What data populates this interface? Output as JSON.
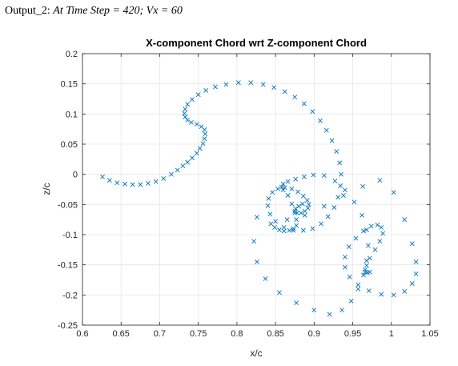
{
  "caption": {
    "prefix": "Output_2: ",
    "text": "At Time Step = 420; Vx = 60"
  },
  "chart_data": {
    "type": "scatter",
    "title": "X-component Chord wrt Z-component Chord",
    "xlabel": "x/c",
    "ylabel": "z/c",
    "xlim": [
      0.6,
      1.05
    ],
    "ylim": [
      -0.25,
      0.2
    ],
    "xticks": [
      0.6,
      0.65,
      0.7,
      0.75,
      0.8,
      0.85,
      0.9,
      0.95,
      1,
      1.05
    ],
    "xtick_labels": [
      "0.6",
      "0.65",
      "0.7",
      "0.75",
      "0.8",
      "0.85",
      "0.9",
      "0.95",
      "1",
      "1.05"
    ],
    "yticks": [
      0.2,
      0.15,
      0.1,
      0.05,
      0,
      -0.05,
      -0.1,
      -0.15,
      -0.2,
      -0.25
    ],
    "ytick_labels": [
      "0.2",
      "0.15",
      "0.1",
      "0.05",
      "0",
      "-0.05",
      "-0.1",
      "-0.15",
      "-0.2",
      "-0.25"
    ],
    "grid": true,
    "marker": "x",
    "marker_color": "#0072BD",
    "series": [
      {
        "values_x": [
          0.626,
          0.635,
          0.645,
          0.655,
          0.665,
          0.675,
          0.685,
          0.695,
          0.705,
          0.715,
          0.723,
          0.73,
          0.736,
          0.742,
          0.748,
          0.752,
          0.756,
          0.758,
          0.759,
          0.758,
          0.754,
          0.748,
          0.741,
          0.736,
          0.733,
          0.732,
          0.733,
          0.736,
          0.742,
          0.75,
          0.76,
          0.772,
          0.786,
          0.802,
          0.818,
          0.834,
          0.848,
          0.862,
          0.875,
          0.887,
          0.898,
          0.908,
          0.916,
          0.923,
          0.929,
          0.933,
          0.935,
          0.934,
          0.931,
          0.926,
          0.918,
          0.909,
          0.898,
          0.886,
          0.873,
          0.861,
          0.85,
          0.843,
          0.84,
          0.841,
          0.846,
          0.853,
          0.862,
          0.871,
          0.879,
          0.886,
          0.891,
          0.893,
          0.892,
          0.888,
          0.883,
          0.878,
          0.875,
          0.876,
          0.88,
          0.885,
          0.826,
          0.822,
          0.826,
          0.837,
          0.855,
          0.877,
          0.9,
          0.92,
          0.936,
          0.948,
          0.957,
          0.964,
          0.968,
          0.97,
          0.968,
          0.962,
          0.952,
          0.94,
          0.927,
          0.913,
          0.899,
          0.887,
          0.876,
          0.866,
          0.86,
          0.858,
          0.86,
          0.866,
          0.871,
          0.875,
          0.877,
          0.877,
          0.873,
          0.868,
          0.861,
          0.855,
          0.849,
          0.844,
          0.865,
          0.888,
          0.913,
          0.938,
          0.963,
          0.985,
          1.003,
          1.017,
          1.027,
          1.032,
          1.032,
          1.027,
          1.017,
          1.003,
          0.987,
          0.971,
          0.957,
          0.946,
          0.94,
          0.94,
          0.945,
          0.954,
          0.964,
          0.974,
          0.982,
          0.987,
          0.989,
          0.985,
          0.979,
          0.972,
          0.968,
          0.966,
          0.966,
          0.969,
          0.972
        ],
        "values_y": [
          -0.004,
          -0.01,
          -0.014,
          -0.016,
          -0.017,
          -0.017,
          -0.015,
          -0.012,
          -0.007,
          0.0,
          0.007,
          0.014,
          0.02,
          0.027,
          0.035,
          0.043,
          0.051,
          0.059,
          0.067,
          0.074,
          0.079,
          0.083,
          0.086,
          0.09,
          0.095,
          0.101,
          0.108,
          0.116,
          0.124,
          0.132,
          0.139,
          0.145,
          0.149,
          0.152,
          0.152,
          0.149,
          0.144,
          0.137,
          0.128,
          0.117,
          0.104,
          0.089,
          0.073,
          0.056,
          0.038,
          0.019,
          0.0,
          -0.019,
          -0.038,
          -0.055,
          -0.07,
          -0.082,
          -0.09,
          -0.093,
          -0.093,
          -0.088,
          -0.078,
          -0.066,
          -0.052,
          -0.04,
          -0.03,
          -0.024,
          -0.022,
          -0.024,
          -0.029,
          -0.036,
          -0.043,
          -0.05,
          -0.056,
          -0.061,
          -0.064,
          -0.064,
          -0.061,
          -0.057,
          -0.053,
          -0.049,
          -0.071,
          -0.111,
          -0.145,
          -0.173,
          -0.196,
          -0.213,
          -0.225,
          -0.232,
          -0.225,
          -0.21,
          -0.19,
          -0.167,
          -0.143,
          -0.118,
          -0.092,
          -0.068,
          -0.046,
          -0.026,
          -0.011,
          -0.002,
          -0.001,
          -0.004,
          -0.008,
          -0.012,
          -0.016,
          -0.021,
          -0.026,
          -0.035,
          -0.049,
          -0.064,
          -0.075,
          -0.085,
          -0.09,
          -0.093,
          -0.094,
          -0.092,
          -0.088,
          -0.082,
          -0.075,
          -0.068,
          -0.053,
          -0.035,
          -0.02,
          -0.01,
          -0.03,
          -0.075,
          -0.115,
          -0.145,
          -0.165,
          -0.181,
          -0.194,
          -0.2,
          -0.199,
          -0.193,
          -0.183,
          -0.17,
          -0.154,
          -0.137,
          -0.12,
          -0.106,
          -0.094,
          -0.086,
          -0.084,
          -0.088,
          -0.098,
          -0.111,
          -0.125,
          -0.139,
          -0.151,
          -0.158,
          -0.162,
          -0.163,
          -0.162
        ]
      }
    ]
  }
}
